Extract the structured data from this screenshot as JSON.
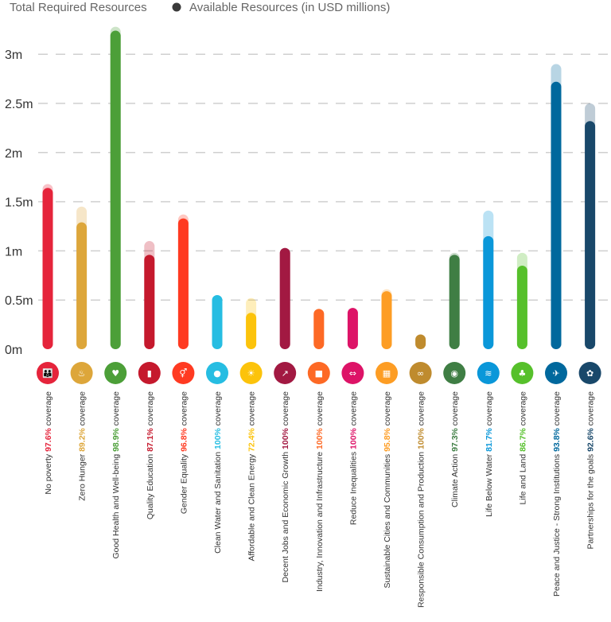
{
  "chart_data": {
    "type": "bar",
    "legend": {
      "total_label": "Total Required Resources",
      "available_label": "Available Resources (in USD millions)"
    },
    "y_ticks": [
      "0m",
      "0.5m",
      "1m",
      "1.5m",
      "2m",
      "2.5m",
      "3m"
    ],
    "ylim": [
      0,
      3.3
    ],
    "coverage_word": "coverage",
    "categories": [
      {
        "name": "No poverty",
        "coverage": "97.6%",
        "required": 1.68,
        "available": 1.64,
        "color": "#e5243b",
        "icon": "people-icon",
        "glyph": "👪"
      },
      {
        "name": "Zero Hunger",
        "coverage": "89.2%",
        "required": 1.45,
        "available": 1.29,
        "color": "#dda63a",
        "icon": "bowl-icon",
        "glyph": "♨"
      },
      {
        "name": "Good Health and Well-being",
        "coverage": "98.9%",
        "required": 3.28,
        "available": 3.24,
        "color": "#4c9f38",
        "icon": "heartbeat-icon",
        "glyph": "♥"
      },
      {
        "name": "Quality Education",
        "coverage": "87.1%",
        "required": 1.1,
        "available": 0.96,
        "color": "#c5192d",
        "icon": "book-icon",
        "glyph": "▮"
      },
      {
        "name": "Gender Equality",
        "coverage": "96.8%",
        "required": 1.37,
        "available": 1.33,
        "color": "#ff3a21",
        "icon": "gender-icon",
        "glyph": "⚥"
      },
      {
        "name": "Clean Water and Sanitation",
        "coverage": "100%",
        "required": 0.55,
        "available": 0.55,
        "color": "#26bde2",
        "icon": "water-drop-icon",
        "glyph": "●"
      },
      {
        "name": "Affordable and Clean Energy",
        "coverage": "72.4%",
        "required": 0.52,
        "available": 0.37,
        "color": "#fcc30b",
        "icon": "sun-icon",
        "glyph": "☀"
      },
      {
        "name": "Decent Jobs and Economic Growth",
        "coverage": "100%",
        "required": 1.03,
        "available": 1.03,
        "color": "#a21942",
        "icon": "growth-chart-icon",
        "glyph": "↗"
      },
      {
        "name": "Industry, Innovation and Infrastructure",
        "coverage": "100%",
        "required": 0.41,
        "available": 0.41,
        "color": "#fd6925",
        "icon": "cubes-icon",
        "glyph": "■"
      },
      {
        "name": "Reduce Inequalities",
        "coverage": "100%",
        "required": 0.42,
        "available": 0.42,
        "color": "#dd1367",
        "icon": "equality-icon",
        "glyph": "⇔"
      },
      {
        "name": "Sustainable Cities and Communities",
        "coverage": "95.8%",
        "required": 0.61,
        "available": 0.59,
        "color": "#fd9d24",
        "icon": "city-icon",
        "glyph": "▦"
      },
      {
        "name": "Responsible Consumption and Production",
        "coverage": "100%",
        "required": 0.15,
        "available": 0.15,
        "color": "#bf8b2e",
        "icon": "infinity-icon",
        "glyph": "∞"
      },
      {
        "name": "Climate Action",
        "coverage": "97.3%",
        "required": 0.98,
        "available": 0.96,
        "color": "#3f7e44",
        "icon": "eye-globe-icon",
        "glyph": "◉"
      },
      {
        "name": "Life Below Water",
        "coverage": "81.7%",
        "required": 1.41,
        "available": 1.15,
        "color": "#0a97d9",
        "icon": "fish-icon",
        "glyph": "≋"
      },
      {
        "name": "Life and Land",
        "coverage": "86.7%",
        "required": 0.98,
        "available": 0.85,
        "color": "#56c02b",
        "icon": "tree-icon",
        "glyph": "♣"
      },
      {
        "name": "Peace and Justice - Strong Institutions",
        "coverage": "93.8%",
        "required": 2.9,
        "available": 2.72,
        "color": "#00689d",
        "icon": "dove-icon",
        "glyph": "✈"
      },
      {
        "name": "Partnerships for the goals",
        "coverage": "92.6%",
        "required": 2.5,
        "available": 2.32,
        "color": "#19486a",
        "icon": "rings-icon",
        "glyph": "✿"
      }
    ]
  }
}
